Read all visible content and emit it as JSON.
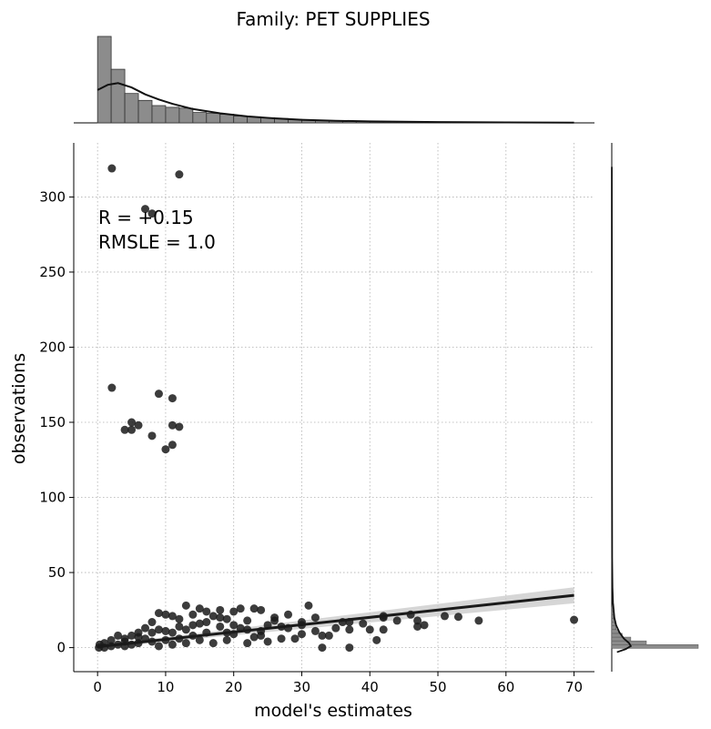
{
  "chart_data": {
    "type": "scatter",
    "title": "Family: PET SUPPLIES",
    "xlabel": "model's estimates",
    "ylabel": "observations",
    "annotation": [
      "R = +0.15",
      "RMSLE =  1.0"
    ],
    "xlim": [
      -3.5,
      73
    ],
    "ylim": [
      -16,
      336
    ],
    "xticks": [
      0,
      10,
      20,
      30,
      40,
      50,
      60,
      70
    ],
    "yticks": [
      0,
      50,
      100,
      150,
      200,
      250,
      300
    ],
    "grid": true,
    "colors": {
      "points": "#1a1a1a",
      "line": "#1a1a1a",
      "band": "#c8c8c8",
      "hist": "#8c8c8c"
    },
    "regression": {
      "x": [
        0,
        70
      ],
      "y": [
        0.6,
        34.8
      ],
      "ci_low": [
        -0.3,
        29.5
      ],
      "ci_high": [
        1.5,
        40.2
      ]
    },
    "points": [
      {
        "x": 2.1,
        "y": 319
      },
      {
        "x": 12,
        "y": 315
      },
      {
        "x": 7,
        "y": 292
      },
      {
        "x": 8,
        "y": 289
      },
      {
        "x": 2.1,
        "y": 173
      },
      {
        "x": 9,
        "y": 169
      },
      {
        "x": 11,
        "y": 166
      },
      {
        "x": 5,
        "y": 150
      },
      {
        "x": 6,
        "y": 148
      },
      {
        "x": 11,
        "y": 148
      },
      {
        "x": 12,
        "y": 147
      },
      {
        "x": 4,
        "y": 145
      },
      {
        "x": 5,
        "y": 145
      },
      {
        "x": 8,
        "y": 141
      },
      {
        "x": 11,
        "y": 135
      },
      {
        "x": 10,
        "y": 132
      },
      {
        "x": 70,
        "y": 18.5
      },
      {
        "x": 56,
        "y": 18
      },
      {
        "x": 53,
        "y": 20.5
      },
      {
        "x": 51,
        "y": 21
      },
      {
        "x": 48,
        "y": 15
      },
      {
        "x": 47,
        "y": 18
      },
      {
        "x": 47,
        "y": 14
      },
      {
        "x": 46,
        "y": 22
      },
      {
        "x": 44,
        "y": 18
      },
      {
        "x": 42,
        "y": 20
      },
      {
        "x": 42,
        "y": 21
      },
      {
        "x": 42,
        "y": 12
      },
      {
        "x": 41,
        "y": 5
      },
      {
        "x": 40,
        "y": 12
      },
      {
        "x": 39,
        "y": 16
      },
      {
        "x": 37,
        "y": 17
      },
      {
        "x": 37,
        "y": 12
      },
      {
        "x": 37,
        "y": 0
      },
      {
        "x": 36,
        "y": 17
      },
      {
        "x": 35,
        "y": 13
      },
      {
        "x": 34,
        "y": 8
      },
      {
        "x": 33,
        "y": 0
      },
      {
        "x": 33,
        "y": 8
      },
      {
        "x": 32,
        "y": 20
      },
      {
        "x": 32,
        "y": 11
      },
      {
        "x": 31,
        "y": 28
      },
      {
        "x": 30,
        "y": 17
      },
      {
        "x": 30,
        "y": 9
      },
      {
        "x": 28,
        "y": 13
      },
      {
        "x": 28,
        "y": 22
      },
      {
        "x": 27,
        "y": 6
      },
      {
        "x": 26,
        "y": 20
      },
      {
        "x": 25,
        "y": 15
      },
      {
        "x": 25,
        "y": 4
      },
      {
        "x": 24,
        "y": 25
      },
      {
        "x": 24,
        "y": 11
      },
      {
        "x": 23,
        "y": 26
      },
      {
        "x": 23,
        "y": 7
      },
      {
        "x": 22,
        "y": 18
      },
      {
        "x": 22,
        "y": 3
      },
      {
        "x": 21,
        "y": 26
      },
      {
        "x": 21,
        "y": 13
      },
      {
        "x": 20,
        "y": 24
      },
      {
        "x": 20,
        "y": 9
      },
      {
        "x": 19,
        "y": 19
      },
      {
        "x": 19,
        "y": 5
      },
      {
        "x": 18,
        "y": 25
      },
      {
        "x": 18,
        "y": 14
      },
      {
        "x": 17,
        "y": 21
      },
      {
        "x": 17,
        "y": 3
      },
      {
        "x": 16,
        "y": 24
      },
      {
        "x": 16,
        "y": 10
      },
      {
        "x": 15,
        "y": 26
      },
      {
        "x": 15,
        "y": 16
      },
      {
        "x": 14,
        "y": 22
      },
      {
        "x": 14,
        "y": 8
      },
      {
        "x": 13,
        "y": 28
      },
      {
        "x": 13,
        "y": 12
      },
      {
        "x": 12,
        "y": 19
      },
      {
        "x": 12,
        "y": 6
      },
      {
        "x": 11,
        "y": 21
      },
      {
        "x": 11,
        "y": 10
      },
      {
        "x": 10,
        "y": 22
      },
      {
        "x": 10,
        "y": 5
      },
      {
        "x": 9,
        "y": 23
      },
      {
        "x": 9,
        "y": 12
      },
      {
        "x": 8,
        "y": 17
      },
      {
        "x": 8,
        "y": 4
      },
      {
        "x": 7,
        "y": 13
      },
      {
        "x": 7,
        "y": 6
      },
      {
        "x": 6,
        "y": 10
      },
      {
        "x": 6,
        "y": 3
      },
      {
        "x": 5,
        "y": 8
      },
      {
        "x": 5,
        "y": 2
      },
      {
        "x": 4,
        "y": 6
      },
      {
        "x": 4,
        "y": 1
      },
      {
        "x": 3,
        "y": 8
      },
      {
        "x": 3,
        "y": 2
      },
      {
        "x": 2,
        "y": 5
      },
      {
        "x": 2,
        "y": 1
      },
      {
        "x": 1,
        "y": 3
      },
      {
        "x": 1,
        "y": 0
      },
      {
        "x": 0.3,
        "y": 2
      },
      {
        "x": 0.2,
        "y": 0
      },
      {
        "x": 26,
        "y": 18
      },
      {
        "x": 27,
        "y": 14
      },
      {
        "x": 29,
        "y": 6
      },
      {
        "x": 30,
        "y": 15
      },
      {
        "x": 18,
        "y": 20
      },
      {
        "x": 16,
        "y": 17
      },
      {
        "x": 14,
        "y": 15
      },
      {
        "x": 12,
        "y": 14
      },
      {
        "x": 10,
        "y": 11
      },
      {
        "x": 8,
        "y": 10
      },
      {
        "x": 6,
        "y": 7
      },
      {
        "x": 4,
        "y": 4
      },
      {
        "x": 20,
        "y": 15
      },
      {
        "x": 22,
        "y": 12
      },
      {
        "x": 24,
        "y": 8
      },
      {
        "x": 19,
        "y": 10
      },
      {
        "x": 15,
        "y": 5
      },
      {
        "x": 13,
        "y": 3
      },
      {
        "x": 11,
        "y": 2
      },
      {
        "x": 9,
        "y": 1
      }
    ],
    "marginal_x": {
      "bins_x": [
        0,
        2,
        4,
        6,
        8,
        10,
        12,
        14,
        16,
        18,
        20,
        22,
        24,
        26,
        28,
        30,
        32,
        34,
        36,
        38,
        40,
        42,
        44,
        46,
        48,
        50,
        52,
        54,
        56,
        58,
        60,
        62,
        64,
        66,
        68,
        70
      ],
      "heights": [
        100,
        62,
        34,
        26,
        20,
        18,
        17,
        12,
        11,
        10,
        8,
        7,
        6,
        5,
        4,
        3.2,
        2.6,
        2.2,
        1.8,
        1.5,
        1.3,
        1.1,
        1,
        0.9,
        0.8,
        0.7,
        0.6,
        0.5,
        0.5,
        0.4,
        0.4,
        0.3,
        0.3,
        0.3,
        0.2
      ],
      "kde": [
        [
          0,
          38
        ],
        [
          1.5,
          44
        ],
        [
          3,
          46
        ],
        [
          5,
          41
        ],
        [
          7,
          33
        ],
        [
          9,
          27
        ],
        [
          11,
          22
        ],
        [
          14,
          16
        ],
        [
          18,
          11
        ],
        [
          22,
          7.5
        ],
        [
          26,
          5.2
        ],
        [
          30,
          3.6
        ],
        [
          35,
          2.4
        ],
        [
          40,
          1.7
        ],
        [
          50,
          0.9
        ],
        [
          60,
          0.5
        ],
        [
          70,
          0.3
        ]
      ]
    },
    "marginal_y": {
      "bins_y": [
        -0.5,
        2,
        4.5,
        7,
        9.5,
        12,
        14.5,
        17,
        19.5,
        22,
        24.5,
        27
      ],
      "widths": [
        100,
        40,
        22,
        12,
        8,
        5,
        3.5,
        2.5,
        1.8,
        1.2,
        0.8
      ],
      "kde": [
        [
          -3,
          6
        ],
        [
          -1,
          16
        ],
        [
          1,
          22
        ],
        [
          3,
          20
        ],
        [
          6,
          14
        ],
        [
          10,
          9
        ],
        [
          15,
          5
        ],
        [
          20,
          3
        ],
        [
          30,
          1.4
        ],
        [
          40,
          0.8
        ],
        [
          60,
          0.4
        ],
        [
          100,
          0.3
        ],
        [
          150,
          0.2
        ],
        [
          200,
          0.15
        ],
        [
          260,
          0.1
        ],
        [
          320,
          0.05
        ]
      ]
    }
  }
}
